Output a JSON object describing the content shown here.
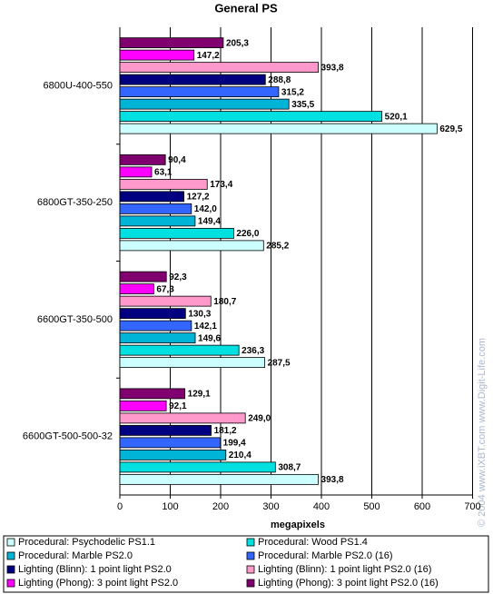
{
  "chart_data": {
    "type": "hbar",
    "title": "General PS",
    "x_label": "megapixels",
    "categories": [
      "6800U-400-550",
      "6800GT-350-250",
      "6600GT-350-500",
      "6600GT-500-500-32"
    ],
    "series": [
      {
        "name": "Procedural: Psychodelic PS1.1",
        "color": "#ccffff",
        "values": [
          629.5,
          285.2,
          287.5,
          393.8
        ],
        "value_labels": [
          "629,5",
          "285,2",
          "287,5",
          "393,8"
        ]
      },
      {
        "name": "Procedural: Wood PS1.4",
        "color": "#00e0e0",
        "values": [
          520.1,
          226.0,
          236.3,
          308.7
        ],
        "value_labels": [
          "520,1",
          "226,0",
          "236,3",
          "308,7"
        ]
      },
      {
        "name": "Procedural: Marble PS2.0",
        "color": "#00b4d8",
        "values": [
          335.5,
          149.4,
          149.6,
          210.4
        ],
        "value_labels": [
          "335,5",
          "149,4",
          "149,6",
          "210,4"
        ]
      },
      {
        "name": "Procedural: Marble PS2.0 (16)",
        "color": "#3366ff",
        "values": [
          315.2,
          142.0,
          142.1,
          199.4
        ],
        "value_labels": [
          "315,2",
          "142,0",
          "142,1",
          "199,4"
        ]
      },
      {
        "name": "Lighting (Blinn): 1 point light PS2.0",
        "color": "#000080",
        "values": [
          288.8,
          127.2,
          130.3,
          181.2
        ],
        "value_labels": [
          "288,8",
          "127,2",
          "130,3",
          "181,2"
        ]
      },
      {
        "name": "Lighting (Blinn): 1 point light PS2.0 (16)",
        "color": "#ff99cc",
        "values": [
          393.8,
          173.4,
          180.7,
          249.0
        ],
        "value_labels": [
          "393,8",
          "173,4",
          "180,7",
          "249,0"
        ]
      },
      {
        "name": "Lighting (Phong): 3 point light PS2.0",
        "color": "#ff00ff",
        "values": [
          147.2,
          63.1,
          67.3,
          92.1
        ],
        "value_labels": [
          "147,2",
          "63,1",
          "67,3",
          "92,1"
        ]
      },
      {
        "name": "Lighting (Phong): 3 point light PS2.0 (16)",
        "color": "#800070",
        "values": [
          205.3,
          90.4,
          92.3,
          129.1
        ],
        "value_labels": [
          "205,3",
          "90,4",
          "92,3",
          "129,1"
        ]
      }
    ],
    "xlim": [
      0,
      700
    ],
    "xticks": [
      0,
      100,
      200,
      300,
      400,
      500,
      600,
      700
    ],
    "grid": true,
    "watermark": "© 2004 www.iXBT.com www.Digit-Life.com"
  }
}
